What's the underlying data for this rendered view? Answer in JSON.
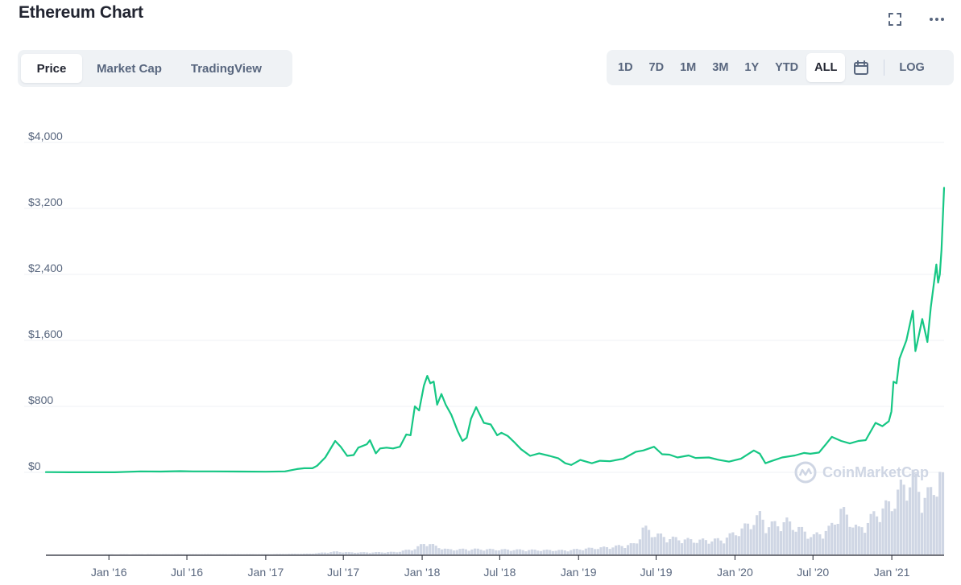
{
  "header": {
    "title": "Ethereum Chart"
  },
  "tabs": [
    {
      "label": "Price",
      "active": true
    },
    {
      "label": "Market Cap",
      "active": false
    },
    {
      "label": "TradingView",
      "active": false
    }
  ],
  "ranges": [
    {
      "label": "1D",
      "active": false
    },
    {
      "label": "7D",
      "active": false
    },
    {
      "label": "1M",
      "active": false
    },
    {
      "label": "3M",
      "active": false
    },
    {
      "label": "1Y",
      "active": false
    },
    {
      "label": "YTD",
      "active": false
    },
    {
      "label": "ALL",
      "active": true
    }
  ],
  "log_label": "LOG",
  "watermark": "CoinMarketCap",
  "icons": {
    "fullscreen": "fullscreen-icon",
    "more": "more-icon",
    "calendar": "calendar-icon"
  },
  "colors": {
    "line": "#16c784",
    "volume": "#cfd6e4",
    "grid": "#eff2f5",
    "axis_text": "#58667e"
  },
  "chart_data": {
    "type": "line",
    "title": "Ethereum Chart",
    "ylabel": "",
    "xlabel": "",
    "ylim": [
      0,
      4000
    ],
    "yticks": [
      0,
      800,
      1600,
      2400,
      3200,
      4000
    ],
    "ytick_labels": [
      "$0",
      "$800",
      "$1,600",
      "$2,400",
      "$3,200",
      "$4,000"
    ],
    "xtick_labels": [
      "Jan '16",
      "Jul '16",
      "Jan '17",
      "Jul '17",
      "Jan '18",
      "Jul '18",
      "Jan '19",
      "Jul '19",
      "Jan '20",
      "Jul '20",
      "Jan '21"
    ],
    "xticks": [
      "2016-01-01",
      "2016-07-01",
      "2017-01-01",
      "2017-07-01",
      "2018-01-01",
      "2018-07-01",
      "2019-01-01",
      "2019-07-01",
      "2020-01-01",
      "2020-07-01",
      "2021-01-01"
    ],
    "xlim": [
      "2015-08-07",
      "2021-05-03"
    ],
    "grid": true,
    "series": [
      {
        "values": [
          [
            "2015-08-07",
            3
          ],
          [
            "2015-10-01",
            1
          ],
          [
            "2015-12-01",
            1
          ],
          [
            "2016-01-15",
            1
          ],
          [
            "2016-03-15",
            12
          ],
          [
            "2016-05-01",
            10
          ],
          [
            "2016-06-15",
            15
          ],
          [
            "2016-07-15",
            12
          ],
          [
            "2016-09-01",
            12
          ],
          [
            "2016-11-01",
            10
          ],
          [
            "2017-01-01",
            8
          ],
          [
            "2017-02-15",
            12
          ],
          [
            "2017-03-15",
            40
          ],
          [
            "2017-04-01",
            50
          ],
          [
            "2017-04-20",
            50
          ],
          [
            "2017-05-01",
            80
          ],
          [
            "2017-05-20",
            180
          ],
          [
            "2017-06-12",
            380
          ],
          [
            "2017-06-25",
            310
          ],
          [
            "2017-07-10",
            200
          ],
          [
            "2017-07-25",
            210
          ],
          [
            "2017-08-05",
            300
          ],
          [
            "2017-08-25",
            340
          ],
          [
            "2017-09-01",
            390
          ],
          [
            "2017-09-15",
            230
          ],
          [
            "2017-09-25",
            290
          ],
          [
            "2017-10-10",
            300
          ],
          [
            "2017-10-25",
            290
          ],
          [
            "2017-11-10",
            310
          ],
          [
            "2017-11-25",
            460
          ],
          [
            "2017-12-05",
            450
          ],
          [
            "2017-12-15",
            800
          ],
          [
            "2017-12-25",
            750
          ],
          [
            "2018-01-05",
            1050
          ],
          [
            "2018-01-13",
            1170
          ],
          [
            "2018-01-20",
            1080
          ],
          [
            "2018-01-28",
            1100
          ],
          [
            "2018-02-05",
            820
          ],
          [
            "2018-02-15",
            950
          ],
          [
            "2018-02-25",
            820
          ],
          [
            "2018-03-10",
            700
          ],
          [
            "2018-03-25",
            500
          ],
          [
            "2018-04-05",
            380
          ],
          [
            "2018-04-15",
            420
          ],
          [
            "2018-04-25",
            650
          ],
          [
            "2018-05-07",
            790
          ],
          [
            "2018-05-25",
            600
          ],
          [
            "2018-06-10",
            580
          ],
          [
            "2018-06-25",
            450
          ],
          [
            "2018-07-05",
            480
          ],
          [
            "2018-07-20",
            440
          ],
          [
            "2018-08-05",
            360
          ],
          [
            "2018-08-20",
            280
          ],
          [
            "2018-09-10",
            200
          ],
          [
            "2018-10-01",
            230
          ],
          [
            "2018-10-25",
            200
          ],
          [
            "2018-11-15",
            170
          ],
          [
            "2018-12-01",
            110
          ],
          [
            "2018-12-15",
            90
          ],
          [
            "2019-01-05",
            150
          ],
          [
            "2019-02-01",
            110
          ],
          [
            "2019-02-20",
            140
          ],
          [
            "2019-03-15",
            135
          ],
          [
            "2019-04-15",
            165
          ],
          [
            "2019-05-15",
            250
          ],
          [
            "2019-06-01",
            265
          ],
          [
            "2019-06-26",
            310
          ],
          [
            "2019-07-15",
            220
          ],
          [
            "2019-08-01",
            215
          ],
          [
            "2019-08-20",
            180
          ],
          [
            "2019-09-15",
            205
          ],
          [
            "2019-10-01",
            175
          ],
          [
            "2019-11-01",
            180
          ],
          [
            "2019-11-25",
            150
          ],
          [
            "2019-12-18",
            130
          ],
          [
            "2020-01-15",
            165
          ],
          [
            "2020-02-14",
            265
          ],
          [
            "2020-02-28",
            225
          ],
          [
            "2020-03-12",
            110
          ],
          [
            "2020-03-25",
            135
          ],
          [
            "2020-04-20",
            180
          ],
          [
            "2020-05-20",
            205
          ],
          [
            "2020-06-10",
            235
          ],
          [
            "2020-06-25",
            225
          ],
          [
            "2020-07-15",
            240
          ],
          [
            "2020-08-01",
            345
          ],
          [
            "2020-08-14",
            430
          ],
          [
            "2020-09-05",
            380
          ],
          [
            "2020-09-25",
            350
          ],
          [
            "2020-10-15",
            380
          ],
          [
            "2020-11-01",
            390
          ],
          [
            "2020-11-24",
            600
          ],
          [
            "2020-12-10",
            560
          ],
          [
            "2020-12-25",
            620
          ],
          [
            "2020-12-31",
            737
          ],
          [
            "2021-01-05",
            1100
          ],
          [
            "2021-01-12",
            1080
          ],
          [
            "2021-01-19",
            1380
          ],
          [
            "2021-02-04",
            1600
          ],
          [
            "2021-02-19",
            1960
          ],
          [
            "2021-02-25",
            1470
          ],
          [
            "2021-03-01",
            1560
          ],
          [
            "2021-03-13",
            1860
          ],
          [
            "2021-03-25",
            1580
          ],
          [
            "2021-04-02",
            2000
          ],
          [
            "2021-04-15",
            2520
          ],
          [
            "2021-04-19",
            2300
          ],
          [
            "2021-04-23",
            2400
          ],
          [
            "2021-04-27",
            2700
          ],
          [
            "2021-05-03",
            3450
          ]
        ]
      }
    ],
    "volume": {
      "values": [
        [
          "2015-08-07",
          0
        ],
        [
          "2016-01-01",
          0.2
        ],
        [
          "2016-07-01",
          0.3
        ],
        [
          "2017-01-01",
          0.3
        ],
        [
          "2017-04-15",
          1.0
        ],
        [
          "2017-06-15",
          3.5
        ],
        [
          "2017-07-15",
          2.5
        ],
        [
          "2017-09-01",
          2.5
        ],
        [
          "2017-11-01",
          3.0
        ],
        [
          "2017-12-15",
          7.0
        ],
        [
          "2018-01-10",
          15.0
        ],
        [
          "2018-02-01",
          10.0
        ],
        [
          "2018-03-01",
          6.0
        ],
        [
          "2018-05-01",
          6.5
        ],
        [
          "2018-07-01",
          6.0
        ],
        [
          "2018-09-01",
          5.5
        ],
        [
          "2018-12-01",
          5.0
        ],
        [
          "2019-01-15",
          7.0
        ],
        [
          "2019-03-15",
          9.0
        ],
        [
          "2019-05-15",
          13.0
        ],
        [
          "2019-06-01",
          33.0
        ],
        [
          "2019-06-26",
          25.0
        ],
        [
          "2019-08-01",
          20.0
        ],
        [
          "2019-10-01",
          17.0
        ],
        [
          "2019-12-01",
          18.0
        ],
        [
          "2020-01-15",
          30.0
        ],
        [
          "2020-03-01",
          48.0
        ],
        [
          "2020-03-15",
          35.0
        ],
        [
          "2020-05-01",
          40.0
        ],
        [
          "2020-07-01",
          22.0
        ],
        [
          "2020-08-10",
          32.0
        ],
        [
          "2020-09-05",
          55.0
        ],
        [
          "2020-10-15",
          30.0
        ],
        [
          "2020-11-24",
          50.0
        ],
        [
          "2021-01-05",
          65.0
        ],
        [
          "2021-01-20",
          80.0
        ],
        [
          "2021-02-20",
          95.0
        ],
        [
          "2021-03-15",
          70.0
        ],
        [
          "2021-04-01",
          75.0
        ],
        [
          "2021-04-25",
          100.0
        ],
        [
          "2021-05-03",
          82.0
        ]
      ]
    },
    "watermark": "CoinMarketCap",
    "legend": "none"
  }
}
